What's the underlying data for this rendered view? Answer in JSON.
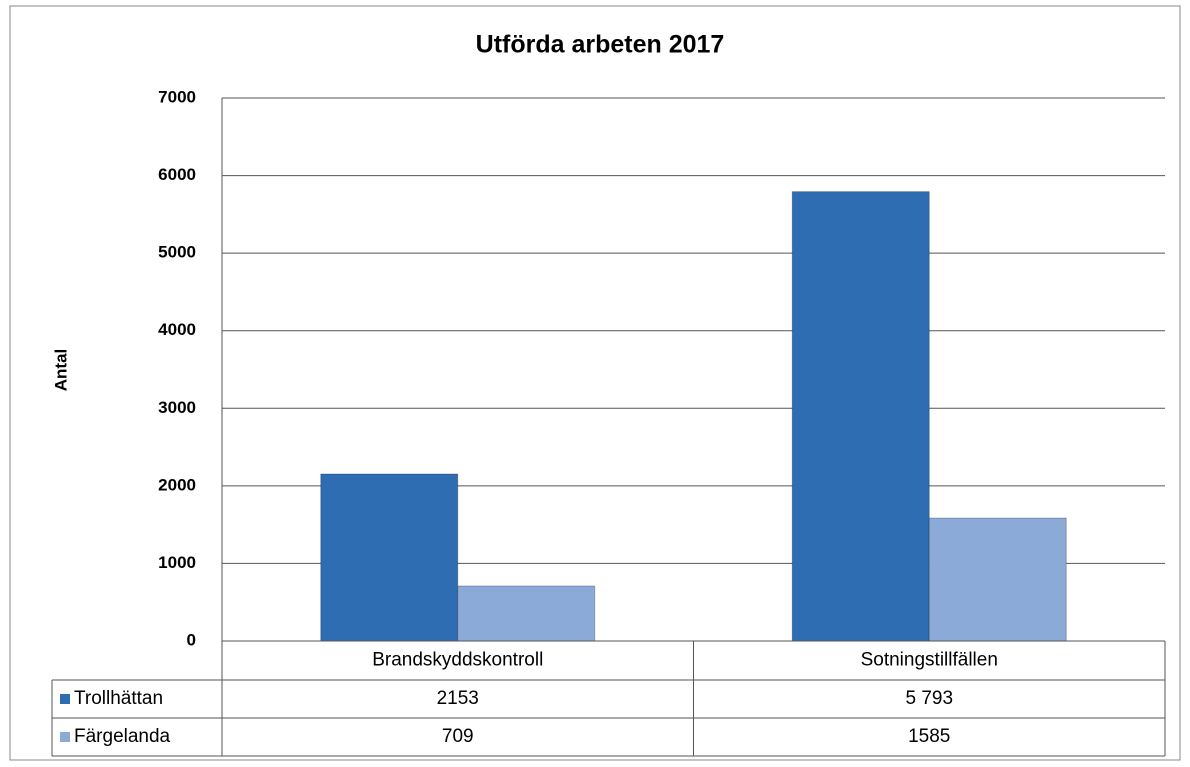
{
  "chart_data": {
    "type": "bar",
    "title": "Utförda arbeten 2017",
    "y_label": "Antal",
    "categories": [
      "Brandskyddskontroll",
      "Sotningstillfällen"
    ],
    "series": [
      {
        "name": "Trollhättan",
        "color": "#2f6db3",
        "values": [
          2153,
          5793
        ],
        "value_labels": [
          "2153",
          "5 793"
        ]
      },
      {
        "name": "Färgelanda",
        "color": "#8caad8",
        "values": [
          709,
          1585
        ]
      }
    ],
    "ylim": [
      0,
      7000
    ],
    "yticks": [
      0,
      1000,
      2000,
      3000,
      4000,
      5000,
      6000,
      7000
    ],
    "grid": true
  }
}
